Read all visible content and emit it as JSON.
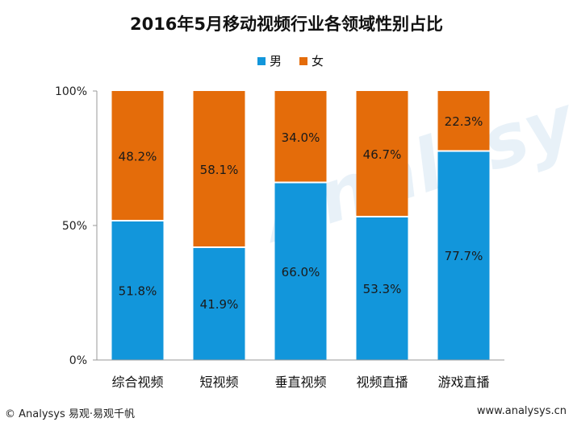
{
  "chart_data": {
    "type": "bar",
    "stacked": true,
    "percent_stacked": true,
    "title": "2016年5月移动视频行业各领域性别占比",
    "categories": [
      "综合视频",
      "短视频",
      "垂直视频",
      "视频直播",
      "游戏直播"
    ],
    "series": [
      {
        "name": "男",
        "color": "#1296db",
        "values": [
          51.8,
          41.9,
          66.0,
          53.3,
          77.7
        ],
        "labels": [
          "51.8%",
          "41.9%",
          "66.0%",
          "53.3%",
          "77.7%"
        ]
      },
      {
        "name": "女",
        "color": "#e46c0a",
        "values": [
          48.2,
          58.1,
          34.0,
          46.7,
          22.3
        ],
        "labels": [
          "48.2%",
          "58.1%",
          "34.0%",
          "46.7%",
          "22.3%"
        ]
      }
    ],
    "ylim": [
      0,
      100
    ],
    "yticks": [
      0,
      50,
      100
    ],
    "ytick_labels": [
      "0%",
      "50%",
      "100%"
    ],
    "grid": false,
    "legend_position": "top-center"
  },
  "footer": {
    "left": "© Analysys 易观·易观千帆",
    "right": "www.analysys.cn"
  }
}
